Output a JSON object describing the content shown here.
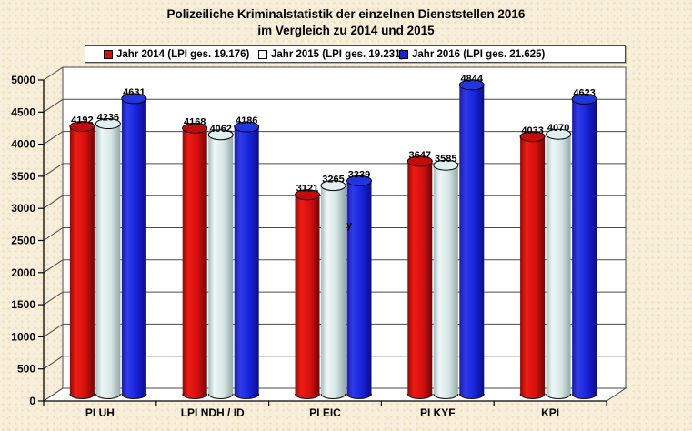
{
  "window": {
    "background": "#f8efda"
  },
  "title": {
    "line1": "Polizeiliche Kriminalstatistik der einzelnen Dienststellen 2016",
    "line2": "im Vergleich zu 2014 und 2015"
  },
  "legend": {
    "items": [
      {
        "label": "Jahr 2014 (LPI ges. 19.176)",
        "swatch_color": "#d41010"
      },
      {
        "label": "Jahr 2015 (LPI ges. 19.231)",
        "swatch_color": "#ffffff"
      },
      {
        "label": "Jahr 2016 (LPI ges. 21.625)",
        "swatch_color": "#1822d8"
      }
    ]
  },
  "chart_data": {
    "type": "bar",
    "subtype": "3d-cylinder",
    "title": "Polizeiliche Kriminalstatistik der einzelnen Dienststellen 2016 im Vergleich zu 2014 und 2015",
    "categories": [
      "PI UH",
      "LPI NDH / ID",
      "PI EIC",
      "PI KYF",
      "KPI"
    ],
    "series": [
      {
        "name": "Jahr 2014 (LPI ges. 19.176)",
        "values": [
          4192,
          4168,
          3121,
          3647,
          4033
        ],
        "colors": {
          "edge_near": "#8c0a0a",
          "body_light": "#ee1c12",
          "body_mid": "#d41010",
          "edge_far": "#6f0606",
          "cap": "#c40b0b"
        }
      },
      {
        "name": "Jahr 2015 (LPI ges. 19.231)",
        "values": [
          4236,
          4062,
          3265,
          3585,
          4070
        ],
        "colors": {
          "edge_near": "#a7bcbc",
          "body_light": "#eef7f7",
          "body_mid": "#d5e5e5",
          "edge_far": "#93a9a9",
          "cap": "#e0efef"
        }
      },
      {
        "name": "Jahr 2016 (LPI ges. 21.625)",
        "values": [
          4631,
          4186,
          3339,
          4844,
          4623
        ],
        "colors": {
          "edge_near": "#1c1c9e",
          "body_light": "#2e3cec",
          "body_mid": "#1822d8",
          "edge_far": "#0d0d86",
          "cap": "#2136dd"
        }
      }
    ],
    "xlabel": "",
    "ylabel": "",
    "ylim": [
      0,
      5000
    ],
    "ytick_step": 500,
    "grid": true,
    "legend_position": "top",
    "data_labels": true,
    "annotations": [
      {
        "text": "y",
        "category_index": 2,
        "series_index": 2
      }
    ]
  },
  "colors": {
    "plot_background": "#ffffff",
    "gridline": "#4a4a4a",
    "axis": "#000000",
    "text": "#000000"
  }
}
